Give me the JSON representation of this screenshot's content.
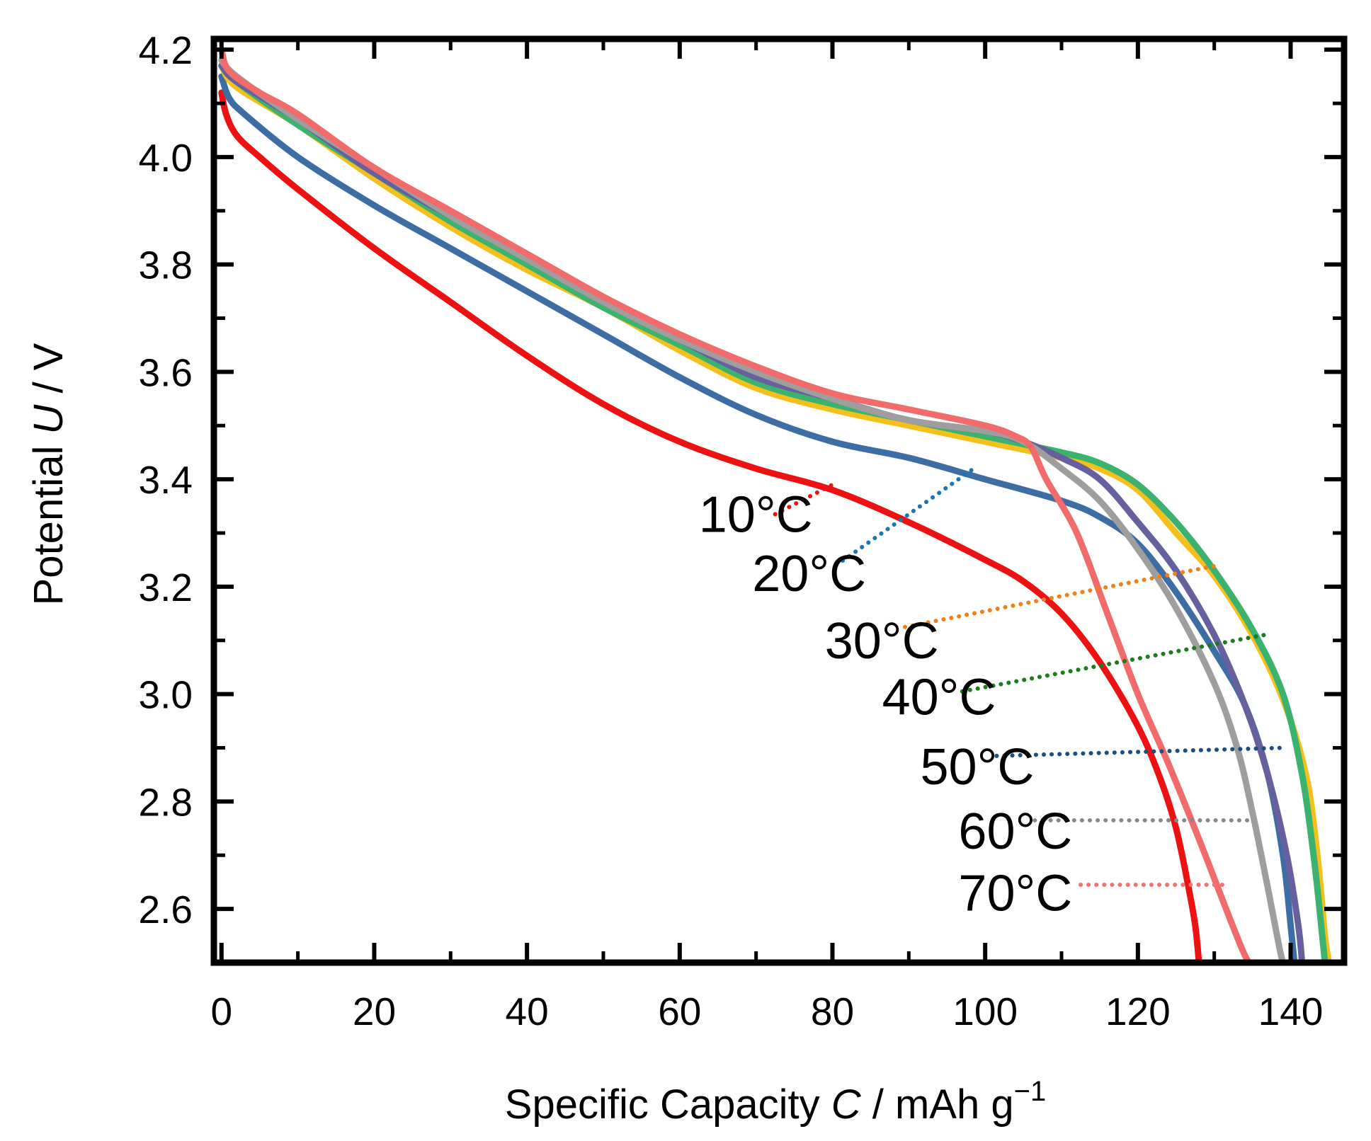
{
  "chart_data": {
    "type": "line",
    "title": "",
    "xlabel": {
      "prefix": "Specific Capacity ",
      "symbol": "C",
      "unit": " / mAh g",
      "exponent": "−1"
    },
    "ylabel": {
      "prefix": "Potential ",
      "symbol": "U",
      "unit": " / V"
    },
    "xlim": [
      -1,
      147
    ],
    "ylim": [
      2.5,
      4.22
    ],
    "xticks": [
      0,
      20,
      40,
      60,
      80,
      100,
      120,
      140
    ],
    "xtick_labels": [
      "0",
      "20",
      "40",
      "60",
      "80",
      "100",
      "120",
      "140"
    ],
    "yticks": [
      2.6,
      2.8,
      3.0,
      3.2,
      3.4,
      3.6,
      3.8,
      4.0,
      4.2
    ],
    "ytick_labels": [
      "2.6",
      "2.8",
      "3.0",
      "3.2",
      "3.4",
      "3.6",
      "3.8",
      "4.0",
      "4.2"
    ],
    "grid": false,
    "series": [
      {
        "name": "10°C",
        "color": "#ee1111",
        "points": [
          [
            0,
            4.12
          ],
          [
            0.6,
            4.08
          ],
          [
            2,
            4.04
          ],
          [
            5,
            4.0
          ],
          [
            10,
            3.94
          ],
          [
            20,
            3.83
          ],
          [
            30,
            3.73
          ],
          [
            40,
            3.63
          ],
          [
            50,
            3.54
          ],
          [
            60,
            3.47
          ],
          [
            70,
            3.42
          ],
          [
            80,
            3.38
          ],
          [
            90,
            3.32
          ],
          [
            100,
            3.25
          ],
          [
            105,
            3.21
          ],
          [
            110,
            3.15
          ],
          [
            115,
            3.06
          ],
          [
            120,
            2.94
          ],
          [
            123,
            2.84
          ],
          [
            125,
            2.75
          ],
          [
            126.5,
            2.65
          ],
          [
            127.5,
            2.57
          ],
          [
            128,
            2.5
          ]
        ]
      },
      {
        "name": "20°C",
        "color": "#3c6ea5",
        "points": [
          [
            0,
            4.15
          ],
          [
            1,
            4.11
          ],
          [
            3,
            4.08
          ],
          [
            10,
            4.0
          ],
          [
            20,
            3.91
          ],
          [
            30,
            3.83
          ],
          [
            40,
            3.75
          ],
          [
            50,
            3.67
          ],
          [
            60,
            3.59
          ],
          [
            70,
            3.52
          ],
          [
            80,
            3.47
          ],
          [
            90,
            3.44
          ],
          [
            100,
            3.4
          ],
          [
            110,
            3.36
          ],
          [
            115,
            3.33
          ],
          [
            120,
            3.28
          ],
          [
            125,
            3.19
          ],
          [
            130,
            3.08
          ],
          [
            134,
            2.98
          ],
          [
            137,
            2.85
          ],
          [
            139,
            2.7
          ],
          [
            140,
            2.57
          ],
          [
            140.5,
            2.5
          ]
        ]
      },
      {
        "name": "30°C",
        "color": "#f5bf1c",
        "points": [
          [
            0,
            4.17
          ],
          [
            2,
            4.13
          ],
          [
            10,
            4.06
          ],
          [
            20,
            3.96
          ],
          [
            30,
            3.87
          ],
          [
            40,
            3.79
          ],
          [
            50,
            3.72
          ],
          [
            60,
            3.64
          ],
          [
            70,
            3.57
          ],
          [
            80,
            3.53
          ],
          [
            90,
            3.5
          ],
          [
            100,
            3.47
          ],
          [
            110,
            3.44
          ],
          [
            115,
            3.42
          ],
          [
            120,
            3.38
          ],
          [
            125,
            3.3
          ],
          [
            130,
            3.22
          ],
          [
            135,
            3.11
          ],
          [
            139,
            2.99
          ],
          [
            142,
            2.85
          ],
          [
            143.5,
            2.7
          ],
          [
            144.5,
            2.55
          ],
          [
            145,
            2.5
          ]
        ]
      },
      {
        "name": "40°C",
        "color": "#3bb26e",
        "points": [
          [
            0,
            4.17
          ],
          [
            2,
            4.14
          ],
          [
            10,
            4.06
          ],
          [
            20,
            3.97
          ],
          [
            30,
            3.88
          ],
          [
            40,
            3.8
          ],
          [
            50,
            3.72
          ],
          [
            60,
            3.65
          ],
          [
            70,
            3.58
          ],
          [
            80,
            3.54
          ],
          [
            90,
            3.51
          ],
          [
            100,
            3.48
          ],
          [
            110,
            3.45
          ],
          [
            115,
            3.43
          ],
          [
            120,
            3.39
          ],
          [
            125,
            3.32
          ],
          [
            130,
            3.23
          ],
          [
            135,
            3.12
          ],
          [
            139,
            3.0
          ],
          [
            141.5,
            2.85
          ],
          [
            143,
            2.7
          ],
          [
            144,
            2.57
          ],
          [
            144.5,
            2.5
          ]
        ]
      },
      {
        "name": "50°C",
        "color": "#66609e",
        "points": [
          [
            0,
            4.17
          ],
          [
            2,
            4.14
          ],
          [
            10,
            4.07
          ],
          [
            20,
            3.97
          ],
          [
            30,
            3.89
          ],
          [
            40,
            3.81
          ],
          [
            50,
            3.73
          ],
          [
            60,
            3.66
          ],
          [
            70,
            3.59
          ],
          [
            80,
            3.55
          ],
          [
            90,
            3.51
          ],
          [
            100,
            3.49
          ],
          [
            105,
            3.47
          ],
          [
            110,
            3.44
          ],
          [
            115,
            3.4
          ],
          [
            120,
            3.32
          ],
          [
            125,
            3.23
          ],
          [
            130,
            3.11
          ],
          [
            134,
            2.98
          ],
          [
            137,
            2.85
          ],
          [
            139.5,
            2.7
          ],
          [
            141,
            2.57
          ],
          [
            141.5,
            2.5
          ]
        ]
      },
      {
        "name": "60°C",
        "color": "#9e9e9e",
        "points": [
          [
            0,
            4.18
          ],
          [
            2,
            4.15
          ],
          [
            10,
            4.07
          ],
          [
            20,
            3.98
          ],
          [
            30,
            3.89
          ],
          [
            40,
            3.81
          ],
          [
            50,
            3.73
          ],
          [
            60,
            3.66
          ],
          [
            70,
            3.6
          ],
          [
            80,
            3.55
          ],
          [
            90,
            3.51
          ],
          [
            100,
            3.49
          ],
          [
            105,
            3.47
          ],
          [
            110,
            3.42
          ],
          [
            115,
            3.36
          ],
          [
            120,
            3.27
          ],
          [
            125,
            3.16
          ],
          [
            130,
            3.02
          ],
          [
            133,
            2.9
          ],
          [
            135,
            2.78
          ],
          [
            137,
            2.64
          ],
          [
            138.5,
            2.53
          ],
          [
            139,
            2.5
          ]
        ]
      },
      {
        "name": "70°C",
        "color": "#f26b6b",
        "points": [
          [
            0,
            4.2
          ],
          [
            1,
            4.16
          ],
          [
            5,
            4.12
          ],
          [
            10,
            4.08
          ],
          [
            20,
            3.98
          ],
          [
            30,
            3.9
          ],
          [
            40,
            3.82
          ],
          [
            50,
            3.74
          ],
          [
            60,
            3.67
          ],
          [
            70,
            3.61
          ],
          [
            80,
            3.56
          ],
          [
            90,
            3.53
          ],
          [
            100,
            3.5
          ],
          [
            104,
            3.48
          ],
          [
            106,
            3.46
          ],
          [
            108,
            3.4
          ],
          [
            112,
            3.3
          ],
          [
            116,
            3.15
          ],
          [
            120,
            3.0
          ],
          [
            124,
            2.87
          ],
          [
            128,
            2.73
          ],
          [
            131,
            2.62
          ],
          [
            133.5,
            2.53
          ],
          [
            134.5,
            2.5
          ]
        ]
      }
    ],
    "annotations": [
      {
        "text": "10°C",
        "color": "#ee1111",
        "label_at": [
          62.5,
          3.335
        ],
        "line": [
          [
            72.5,
            3.335
          ],
          [
            80,
            3.39
          ]
        ]
      },
      {
        "text": "20°C",
        "color": "#1a75b0",
        "label_at": [
          69.5,
          3.225
        ],
        "line": [
          [
            80.5,
            3.24
          ],
          [
            98.5,
            3.42
          ]
        ]
      },
      {
        "text": "30°C",
        "color": "#f28014",
        "label_at": [
          79,
          3.1
        ],
        "line": [
          [
            89.5,
            3.125
          ],
          [
            130.5,
            3.24
          ]
        ]
      },
      {
        "text": "40°C",
        "color": "#1d7a1d",
        "label_at": [
          86.5,
          2.995
        ],
        "line": [
          [
            97,
            3.005
          ],
          [
            136.5,
            3.11
          ]
        ]
      },
      {
        "text": "50°C",
        "color": "#1c4e80",
        "label_at": [
          91.5,
          2.865
        ],
        "line": [
          [
            101.5,
            2.885
          ],
          [
            139,
            2.9
          ]
        ]
      },
      {
        "text": "60°C",
        "color": "#888888",
        "label_at": [
          96.5,
          2.745
        ],
        "line": [
          [
            106.5,
            2.765
          ],
          [
            134.5,
            2.765
          ]
        ]
      },
      {
        "text": "70°C",
        "color": "#f27272",
        "label_at": [
          96.5,
          2.63
        ],
        "line": [
          [
            112.5,
            2.645
          ],
          [
            132,
            2.645
          ]
        ]
      }
    ]
  }
}
